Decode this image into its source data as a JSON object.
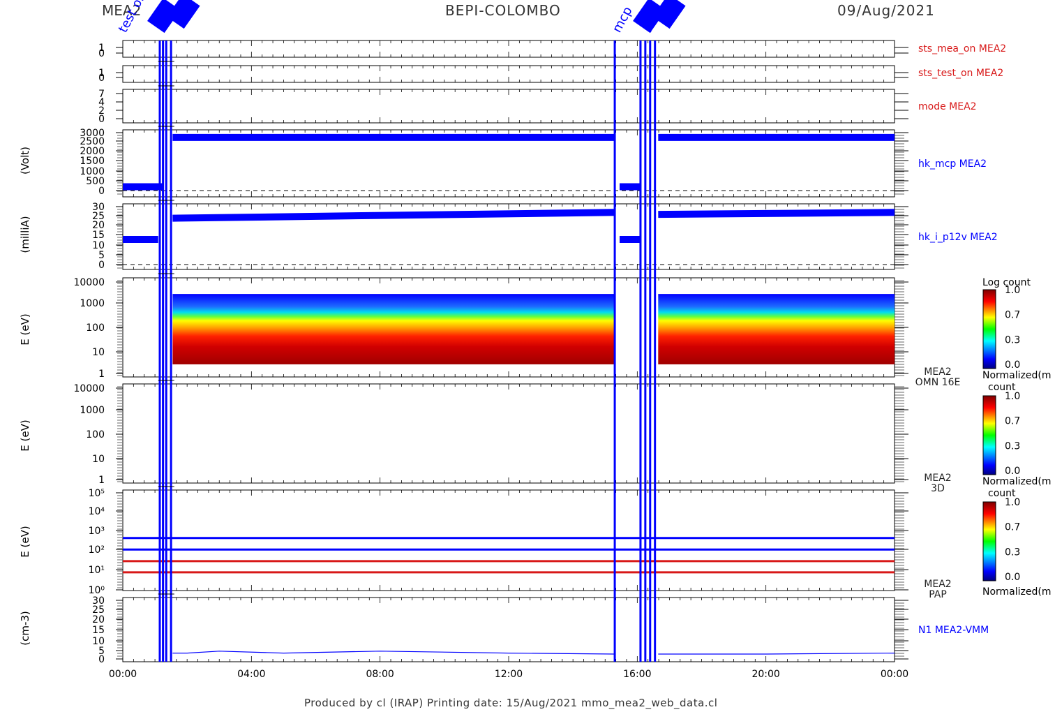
{
  "header": {
    "left": "MEA2",
    "center": "BEPI-COLOMBO",
    "right": "09/Aug/2021"
  },
  "footer": "Produced by cl (IRAP)    Printing date: 15/Aug/2021    mmo_mea2_web_data.cl",
  "event_labels": [
    "test on",
    "mcp",
    "mcp"
  ],
  "x_ticks": [
    "00:00",
    "04:00",
    "08:00",
    "12:00",
    "16:00",
    "20:00",
    "00:00"
  ],
  "colors": {
    "data": "#0000ff",
    "status": "#d81818",
    "axis": "#000000"
  },
  "chart_data": [
    {
      "type": "line",
      "name": "sts_mea_on MEA2",
      "yticks": [
        "1",
        "0"
      ],
      "ylim": [
        0,
        1
      ]
    },
    {
      "type": "line",
      "name": "sts_test_on MEA2",
      "yticks": [
        "1",
        "0"
      ],
      "ylim": [
        0,
        1
      ]
    },
    {
      "type": "line",
      "name": "mode MEA2",
      "yticks": [
        "7",
        "4",
        "2",
        "0"
      ],
      "ylim": [
        0,
        7
      ]
    },
    {
      "type": "line",
      "name": "hk_mcp MEA2",
      "ylabel": "(Volt)",
      "yticks": [
        "3000",
        "2500",
        "2000",
        "1500",
        "1000",
        "500",
        "0"
      ],
      "ylim": [
        0,
        3000
      ],
      "segments": [
        {
          "x": [
            0.0,
            1.25
          ],
          "y": [
            200,
            200
          ]
        },
        {
          "x": [
            1.55,
            15.3
          ],
          "y": [
            2750,
            2750
          ]
        },
        {
          "x": [
            15.45,
            16.1
          ],
          "y": [
            200,
            200
          ]
        },
        {
          "x": [
            16.65,
            24.0
          ],
          "y": [
            2750,
            2750
          ]
        }
      ]
    },
    {
      "type": "line",
      "name": "hk_i_p12v MEA2",
      "ylabel": "(milliA)",
      "yticks": [
        "30",
        "25",
        "20",
        "15",
        "10",
        "5",
        "0"
      ],
      "ylim": [
        0,
        30
      ],
      "segments": [
        {
          "x": [
            0.0,
            1.1
          ],
          "y": [
            13,
            13
          ]
        },
        {
          "x": [
            1.55,
            15.3
          ],
          "y": [
            24,
            27
          ]
        },
        {
          "x": [
            15.45,
            16.1
          ],
          "y": [
            13,
            13
          ]
        },
        {
          "x": [
            16.65,
            24.0
          ],
          "y": [
            26,
            27
          ]
        }
      ]
    },
    {
      "type": "heatmap",
      "name": "MEA2 OMN 16E",
      "ylabel": "E (eV)",
      "yticks": [
        "10000",
        "1000",
        "100",
        "10",
        "1"
      ],
      "ylog": true,
      "ylim": [
        1,
        10000
      ],
      "colorbar": {
        "title": "Log count",
        "ticks": [
          "1.0",
          "0.7",
          "0.3",
          "0.0"
        ]
      },
      "blocks": [
        {
          "x": [
            1.55,
            15.3
          ]
        },
        {
          "x": [
            16.65,
            24.0
          ]
        }
      ]
    },
    {
      "type": "heatmap",
      "name": "MEA2 3D",
      "ylabel": "E (eV)",
      "yticks": [
        "10000",
        "1000",
        "100",
        "10",
        "1"
      ],
      "ylog": true,
      "ylim": [
        1,
        10000
      ],
      "colorbar": {
        "title": "Normalized(m count",
        "ticks": [
          "1.0",
          "0.7",
          "0.3",
          "0.0"
        ]
      }
    },
    {
      "type": "heatmap",
      "name": "MEA2 PAP",
      "ylabel": "E (eV)",
      "yticks": [
        "10⁵",
        "10⁴",
        "10³",
        "10²",
        "10¹",
        "10⁰"
      ],
      "ylog": true,
      "ylim": [
        1,
        100000
      ],
      "colorbar": {
        "title": "Normalized(m count",
        "ticks": [
          "1.0",
          "0.7",
          "0.3",
          "0.0"
        ]
      },
      "lines": [
        {
          "y": 470,
          "color": "#0000ff"
        },
        {
          "y": 120,
          "color": "#0000ff"
        },
        {
          "y": 30,
          "color": "#d81818"
        },
        {
          "y": 8,
          "color": "#d81818"
        }
      ],
      "bottom_label": "Normalized(m"
    },
    {
      "type": "line",
      "name": "N1 MEA2-VMM",
      "ylabel": "(cm-3)",
      "yticks": [
        "30",
        "25",
        "20",
        "15",
        "10",
        "5",
        "0"
      ],
      "ylim": [
        0,
        30
      ],
      "segments": [
        {
          "x": [
            1.55,
            2.0,
            3.0,
            5.0,
            8.0,
            12.0,
            15.3
          ],
          "y": [
            3,
            3,
            4,
            3,
            4,
            3,
            2.5
          ]
        },
        {
          "x": [
            16.65,
            20.0,
            24.0
          ],
          "y": [
            2.5,
            2.5,
            3
          ]
        }
      ]
    }
  ]
}
